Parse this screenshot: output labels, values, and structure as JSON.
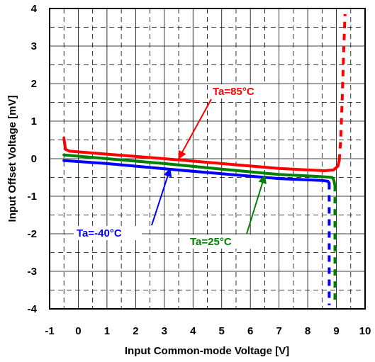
{
  "chart_data": {
    "type": "line",
    "xlabel": "Input Common-mode Voltage [V]",
    "ylabel": "Input Offset Voltage [mV]",
    "xlim": [
      -1,
      10
    ],
    "ylim": [
      -4,
      4
    ],
    "x_ticks": [
      "-1",
      "0",
      "1",
      "2",
      "3",
      "4",
      "5",
      "6",
      "7",
      "8",
      "9",
      "10"
    ],
    "y_ticks": [
      "4",
      "3",
      "2",
      "1",
      "0",
      "-1",
      "-2",
      "-3",
      "-4"
    ],
    "grid": "solid at major divisions, dashed at half divisions",
    "legend": "none (annotations with arrows)",
    "series": [
      {
        "label": "Ta=85°C",
        "color": "#ff0000",
        "solid": [
          [
            -0.5,
            0.55
          ],
          [
            -0.45,
            0.25
          ],
          [
            -0.3,
            0.2
          ],
          [
            1,
            0.12
          ],
          [
            3,
            0.0
          ],
          [
            5,
            -0.13
          ],
          [
            7,
            -0.26
          ],
          [
            8,
            -0.3
          ],
          [
            8.6,
            -0.32
          ],
          [
            8.9,
            -0.3
          ],
          [
            9.05,
            -0.2
          ],
          [
            9.1,
            -0.05
          ]
        ],
        "dotted": [
          [
            9.1,
            -0.05
          ],
          [
            9.15,
            0.5
          ],
          [
            9.2,
            1.5
          ],
          [
            9.25,
            2.8
          ],
          [
            9.3,
            3.85
          ]
        ]
      },
      {
        "label": "Ta=25°C",
        "color": "#008000",
        "solid": [
          [
            -0.5,
            0.1
          ],
          [
            1,
            0.0
          ],
          [
            3,
            -0.13
          ],
          [
            5,
            -0.28
          ],
          [
            7,
            -0.42
          ],
          [
            8.5,
            -0.48
          ],
          [
            8.85,
            -0.5
          ],
          [
            8.9,
            -0.55
          ],
          [
            8.95,
            -0.7
          ]
        ],
        "dotted": [
          [
            8.95,
            -0.7
          ],
          [
            8.95,
            -2.0
          ],
          [
            8.95,
            -3.0
          ],
          [
            8.95,
            -3.9
          ]
        ]
      },
      {
        "label": "Ta=-40°C",
        "color": "#0000ff",
        "solid": [
          [
            -0.5,
            -0.05
          ],
          [
            1,
            -0.13
          ],
          [
            3,
            -0.27
          ],
          [
            5,
            -0.4
          ],
          [
            7,
            -0.53
          ],
          [
            8.5,
            -0.58
          ],
          [
            8.7,
            -0.6
          ],
          [
            8.75,
            -0.65
          ]
        ],
        "dotted": [
          [
            8.75,
            -0.65
          ],
          [
            8.75,
            -2.0
          ],
          [
            8.75,
            -3.0
          ],
          [
            8.75,
            -3.9
          ]
        ]
      }
    ],
    "annotations": [
      {
        "text": "Ta=85°C",
        "color": "#ff0000",
        "arrow_to": [
          3.5,
          0.0
        ]
      },
      {
        "text": "Ta=25°C",
        "color": "#008000",
        "arrow_to": [
          6.5,
          -0.45
        ]
      },
      {
        "text": "Ta=-40°C",
        "color": "#0000ff",
        "arrow_to": [
          3.2,
          -0.27
        ]
      }
    ]
  }
}
